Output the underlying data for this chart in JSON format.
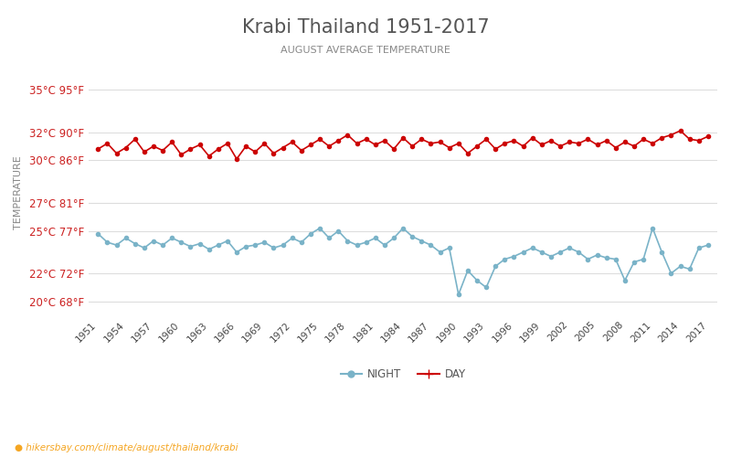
{
  "title": "Krabi Thailand 1951-2017",
  "subtitle": "AUGUST AVERAGE TEMPERATURE",
  "ylabel": "TEMPERATURE",
  "footer": "hikersbay.com/climate/august/thailand/krabi",
  "years": [
    1951,
    1952,
    1953,
    1954,
    1955,
    1956,
    1957,
    1958,
    1959,
    1960,
    1961,
    1962,
    1963,
    1964,
    1965,
    1966,
    1967,
    1968,
    1969,
    1970,
    1971,
    1972,
    1973,
    1974,
    1975,
    1976,
    1977,
    1978,
    1979,
    1980,
    1981,
    1982,
    1983,
    1984,
    1985,
    1986,
    1987,
    1988,
    1989,
    1990,
    1991,
    1992,
    1993,
    1994,
    1995,
    1996,
    1997,
    1998,
    1999,
    2000,
    2001,
    2002,
    2003,
    2004,
    2005,
    2006,
    2007,
    2008,
    2009,
    2010,
    2011,
    2012,
    2013,
    2014,
    2015,
    2016,
    2017
  ],
  "day_temps": [
    30.8,
    31.2,
    30.5,
    30.9,
    31.5,
    30.6,
    31.0,
    30.7,
    31.3,
    30.4,
    30.8,
    31.1,
    30.3,
    30.8,
    31.2,
    30.1,
    31.0,
    30.6,
    31.2,
    30.5,
    30.9,
    31.3,
    30.7,
    31.1,
    31.5,
    31.0,
    31.4,
    31.8,
    31.2,
    31.5,
    31.1,
    31.4,
    30.8,
    31.6,
    31.0,
    31.5,
    31.2,
    31.3,
    30.9,
    31.2,
    30.5,
    31.0,
    31.5,
    30.8,
    31.2,
    31.4,
    31.0,
    31.6,
    31.1,
    31.4,
    31.0,
    31.3,
    31.2,
    31.5,
    31.1,
    31.4,
    30.9,
    31.3,
    31.0,
    31.5,
    31.2,
    31.6,
    31.8,
    32.1,
    31.5,
    31.4,
    31.7
  ],
  "night_temps": [
    24.8,
    24.2,
    24.0,
    24.5,
    24.1,
    23.8,
    24.3,
    24.0,
    24.5,
    24.2,
    23.9,
    24.1,
    23.7,
    24.0,
    24.3,
    23.5,
    23.9,
    24.0,
    24.2,
    23.8,
    24.0,
    24.5,
    24.2,
    24.8,
    25.2,
    24.5,
    25.0,
    24.3,
    24.0,
    24.2,
    24.5,
    24.0,
    24.5,
    25.2,
    24.6,
    24.3,
    24.0,
    23.5,
    23.8,
    20.5,
    22.2,
    21.5,
    21.0,
    22.5,
    23.0,
    23.2,
    23.5,
    23.8,
    23.5,
    23.2,
    23.5,
    23.8,
    23.5,
    23.0,
    23.3,
    23.1,
    23.0,
    21.5,
    22.8,
    23.0,
    25.2,
    23.5,
    22.0,
    22.5,
    22.3,
    23.8,
    24.0
  ],
  "day_color": "#cc0000",
  "night_color": "#7ab3c8",
  "title_color": "#555555",
  "subtitle_color": "#888888",
  "ylabel_color": "#888888",
  "tick_color": "#cc2222",
  "background_color": "#ffffff",
  "grid_color": "#dddddd",
  "yticks_c": [
    20,
    22,
    25,
    27,
    30,
    32,
    35
  ],
  "yticks_f": [
    68,
    72,
    77,
    81,
    86,
    90,
    95
  ],
  "xtick_years": [
    1951,
    1954,
    1957,
    1960,
    1963,
    1966,
    1969,
    1972,
    1975,
    1978,
    1981,
    1984,
    1987,
    1990,
    1993,
    1996,
    1999,
    2002,
    2005,
    2008,
    2011,
    2014,
    2017
  ],
  "ylim": [
    19.0,
    36.5
  ],
  "xlim": [
    1950,
    2018
  ]
}
